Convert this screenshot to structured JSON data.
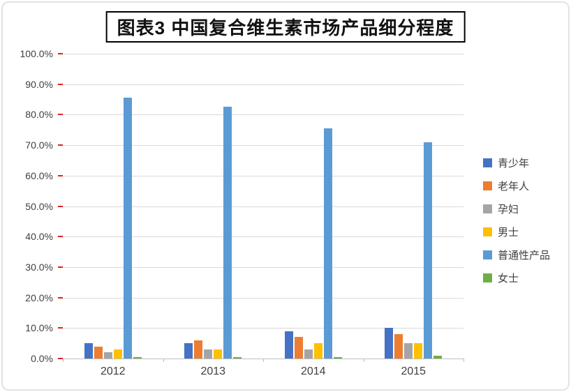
{
  "chart_data": {
    "type": "bar",
    "title": "图表3  中国复合维生素市场产品细分程度",
    "categories": [
      "2012",
      "2013",
      "2014",
      "2015"
    ],
    "series": [
      {
        "name": "青少年",
        "color": "#4472C4",
        "values": [
          5.0,
          5.0,
          9.0,
          10.0
        ]
      },
      {
        "name": "老年人",
        "color": "#ED7D31",
        "values": [
          4.0,
          6.0,
          7.0,
          8.0
        ]
      },
      {
        "name": "孕妇",
        "color": "#A5A5A5",
        "values": [
          2.0,
          3.0,
          3.0,
          5.0
        ]
      },
      {
        "name": "男士",
        "color": "#FFC000",
        "values": [
          3.0,
          3.0,
          5.0,
          5.0
        ]
      },
      {
        "name": "普通性产品",
        "color": "#5B9BD5",
        "values": [
          85.5,
          82.5,
          75.5,
          71.0
        ]
      },
      {
        "name": "女士",
        "color": "#70AD47",
        "values": [
          0.5,
          0.5,
          0.5,
          1.0
        ]
      }
    ],
    "ylim": [
      0,
      100
    ],
    "ytick_step": 10,
    "ytick_labels": [
      "100.0%",
      "90.0%",
      "80.0%",
      "70.0%",
      "60.0%",
      "50.0%",
      "40.0%",
      "30.0%",
      "20.0%",
      "10.0%",
      "0.0%"
    ],
    "grid": true,
    "legend_position": "right"
  }
}
